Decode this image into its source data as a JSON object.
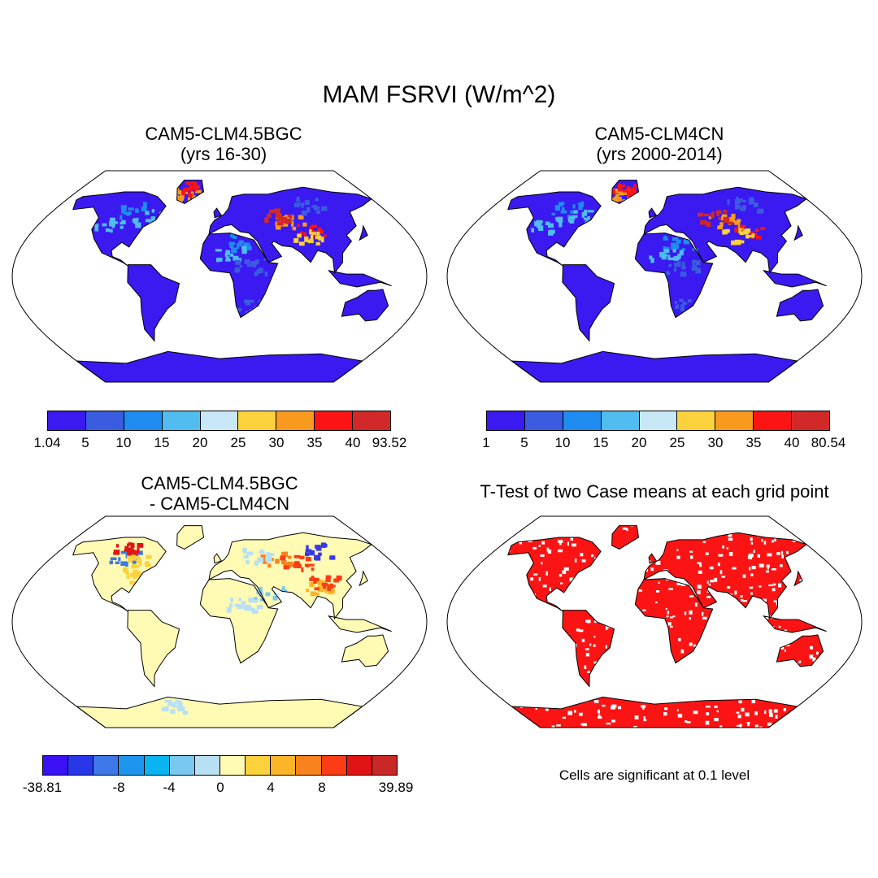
{
  "figure": {
    "title": "MAM FSRVI (W/m^2)",
    "panels": [
      {
        "id": "p1",
        "title_lines": [
          "CAM5-CLM4.5BGC",
          "(yrs 16-30)"
        ],
        "colorbar": {
          "colors": [
            "#3a1af0",
            "#3a5ce0",
            "#1e8cf0",
            "#50bcf0",
            "#c8e8f8",
            "#fcd23c",
            "#f89a1e",
            "#fc1414",
            "#d22828"
          ],
          "labels": [
            "1.04",
            "5",
            "10",
            "15",
            "20",
            "25",
            "30",
            "35",
            "40",
            "93.52"
          ]
        }
      },
      {
        "id": "p2",
        "title_lines": [
          "CAM5-CLM4CN",
          "(yrs 2000-2014)"
        ],
        "colorbar": {
          "colors": [
            "#3a1af0",
            "#3a5ce0",
            "#1e8cf0",
            "#50bcf0",
            "#c8e8f8",
            "#fcd23c",
            "#f89a1e",
            "#fc1414",
            "#d22828"
          ],
          "labels": [
            "1",
            "5",
            "10",
            "15",
            "20",
            "25",
            "30",
            "35",
            "40",
            "80.54"
          ]
        }
      },
      {
        "id": "p3",
        "title_lines": [
          "CAM5-CLM4.5BGC",
          "- CAM5-CLM4CN"
        ],
        "colorbar": {
          "colors": [
            "#3a10f4",
            "#2838e8",
            "#3c78e8",
            "#1e96f0",
            "#0ab4f0",
            "#78c8f0",
            "#b8e0f4",
            "#fffab4",
            "#fcd23c",
            "#fcb428",
            "#f8821e",
            "#fc3c14",
            "#e01414",
            "#c82828"
          ],
          "labels": [
            "-38.81",
            "-8",
            "-4",
            "0",
            "4",
            "8",
            "39.89"
          ]
        }
      },
      {
        "id": "p4",
        "title_lines": [
          "T-Test of two Case means at each grid point"
        ],
        "note": "Cells are significant at 0.1 level"
      }
    ]
  }
}
